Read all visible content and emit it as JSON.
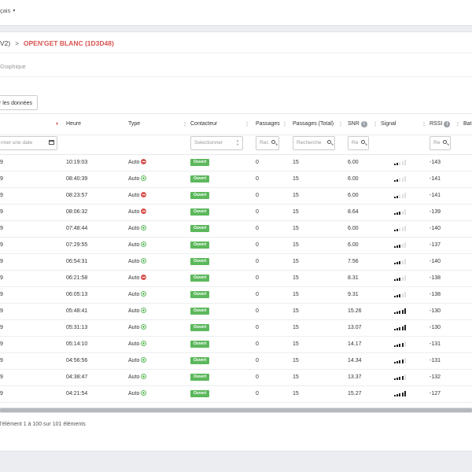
{
  "header": {
    "language_label": "çais"
  },
  "breadcrumb": {
    "previous": "V2)",
    "current": "OPEN'GET BLANC (1D3D48)"
  },
  "tabs": {
    "graph_label": "Graphique"
  },
  "toolbar": {
    "export_label": "r les données"
  },
  "columns": {
    "date": "",
    "heure": "Heure",
    "type": "Type",
    "contacteur": "Contacteur",
    "passages": "Passages",
    "passages_total": "Passages (Total)",
    "snr": "SNR",
    "signal": "Signal",
    "rssi": "RSSI",
    "battery": "Bat"
  },
  "filters": {
    "date_placeholder": "nner une date",
    "contacteur_placeholder": "Selectionner",
    "passages_placeholder": "Rec",
    "passages_total_placeholder": "Recherche",
    "snr_placeholder": "Re",
    "rssi_placeholder": "Re"
  },
  "colors": {
    "accent": "#d9534f",
    "badge": "#5cb85c"
  },
  "rows": [
    {
      "date": "9",
      "heure": "10:19:03",
      "type": "Auto",
      "icon": "minus-circle-icon",
      "contacteur": "Ouvert",
      "passages": "0",
      "total": "15",
      "snr": "6.00",
      "signal": 2,
      "rssi": "-143"
    },
    {
      "date": "9",
      "heure": "08:40:39",
      "type": "Auto",
      "icon": "plus-circle-icon",
      "contacteur": "Ouvert",
      "passages": "0",
      "total": "15",
      "snr": "6.00",
      "signal": 2,
      "rssi": "-141"
    },
    {
      "date": "9",
      "heure": "08:23:57",
      "type": "Auto",
      "icon": "minus-circle-icon",
      "contacteur": "Ouvert",
      "passages": "0",
      "total": "15",
      "snr": "6.00",
      "signal": 2,
      "rssi": "-141"
    },
    {
      "date": "9",
      "heure": "08:06:32",
      "type": "Auto",
      "icon": "minus-circle-icon",
      "contacteur": "Ouvert",
      "passages": "0",
      "total": "15",
      "snr": "8.64",
      "signal": 3,
      "rssi": "-139"
    },
    {
      "date": "9",
      "heure": "07:48:44",
      "type": "Auto",
      "icon": "plus-circle-icon",
      "contacteur": "Ouvert",
      "passages": "0",
      "total": "15",
      "snr": "6.00",
      "signal": 2,
      "rssi": "-140"
    },
    {
      "date": "9",
      "heure": "07:29:55",
      "type": "Auto",
      "icon": "plus-circle-icon",
      "contacteur": "Ouvert",
      "passages": "0",
      "total": "15",
      "snr": "6.00",
      "signal": 3,
      "rssi": "-137"
    },
    {
      "date": "9",
      "heure": "06:54:31",
      "type": "Auto",
      "icon": "plus-circle-icon",
      "contacteur": "Ouvert",
      "passages": "0",
      "total": "15",
      "snr": "7.56",
      "signal": 3,
      "rssi": "-140"
    },
    {
      "date": "9",
      "heure": "06:21:58",
      "type": "Auto",
      "icon": "minus-circle-icon",
      "contacteur": "Ouvert",
      "passages": "0",
      "total": "15",
      "snr": "8.31",
      "signal": 3,
      "rssi": "-138"
    },
    {
      "date": "9",
      "heure": "06:05:13",
      "type": "Auto",
      "icon": "plus-circle-icon",
      "contacteur": "Ouvert",
      "passages": "0",
      "total": "15",
      "snr": "9.31",
      "signal": 3,
      "rssi": "-138"
    },
    {
      "date": "9",
      "heure": "05:48:41",
      "type": "Auto",
      "icon": "plus-circle-icon",
      "contacteur": "Ouvert",
      "passages": "0",
      "total": "15",
      "snr": "15.26",
      "signal": 5,
      "rssi": "-130"
    },
    {
      "date": "9",
      "heure": "05:31:13",
      "type": "Auto",
      "icon": "plus-circle-icon",
      "contacteur": "Ouvert",
      "passages": "0",
      "total": "15",
      "snr": "13.07",
      "signal": 5,
      "rssi": "-130"
    },
    {
      "date": "9",
      "heure": "05:14:10",
      "type": "Auto",
      "icon": "plus-circle-icon",
      "contacteur": "Ouvert",
      "passages": "0",
      "total": "15",
      "snr": "14.17",
      "signal": 4,
      "rssi": "-131"
    },
    {
      "date": "9",
      "heure": "04:56:56",
      "type": "Auto",
      "icon": "plus-circle-icon",
      "contacteur": "Ouvert",
      "passages": "0",
      "total": "15",
      "snr": "14.34",
      "signal": 4,
      "rssi": "-131"
    },
    {
      "date": "9",
      "heure": "04:38:47",
      "type": "Auto",
      "icon": "plus-circle-icon",
      "contacteur": "Ouvert",
      "passages": "0",
      "total": "15",
      "snr": "13.37",
      "signal": 4,
      "rssi": "-132"
    },
    {
      "date": "9",
      "heure": "04:21:54",
      "type": "Auto",
      "icon": "plus-circle-icon",
      "contacteur": "Ouvert",
      "passages": "0",
      "total": "15",
      "snr": "15.27",
      "signal": 5,
      "rssi": "-127"
    }
  ],
  "footer": {
    "pagination_text": "l'élément 1 à 100 sur 101 éléments"
  }
}
